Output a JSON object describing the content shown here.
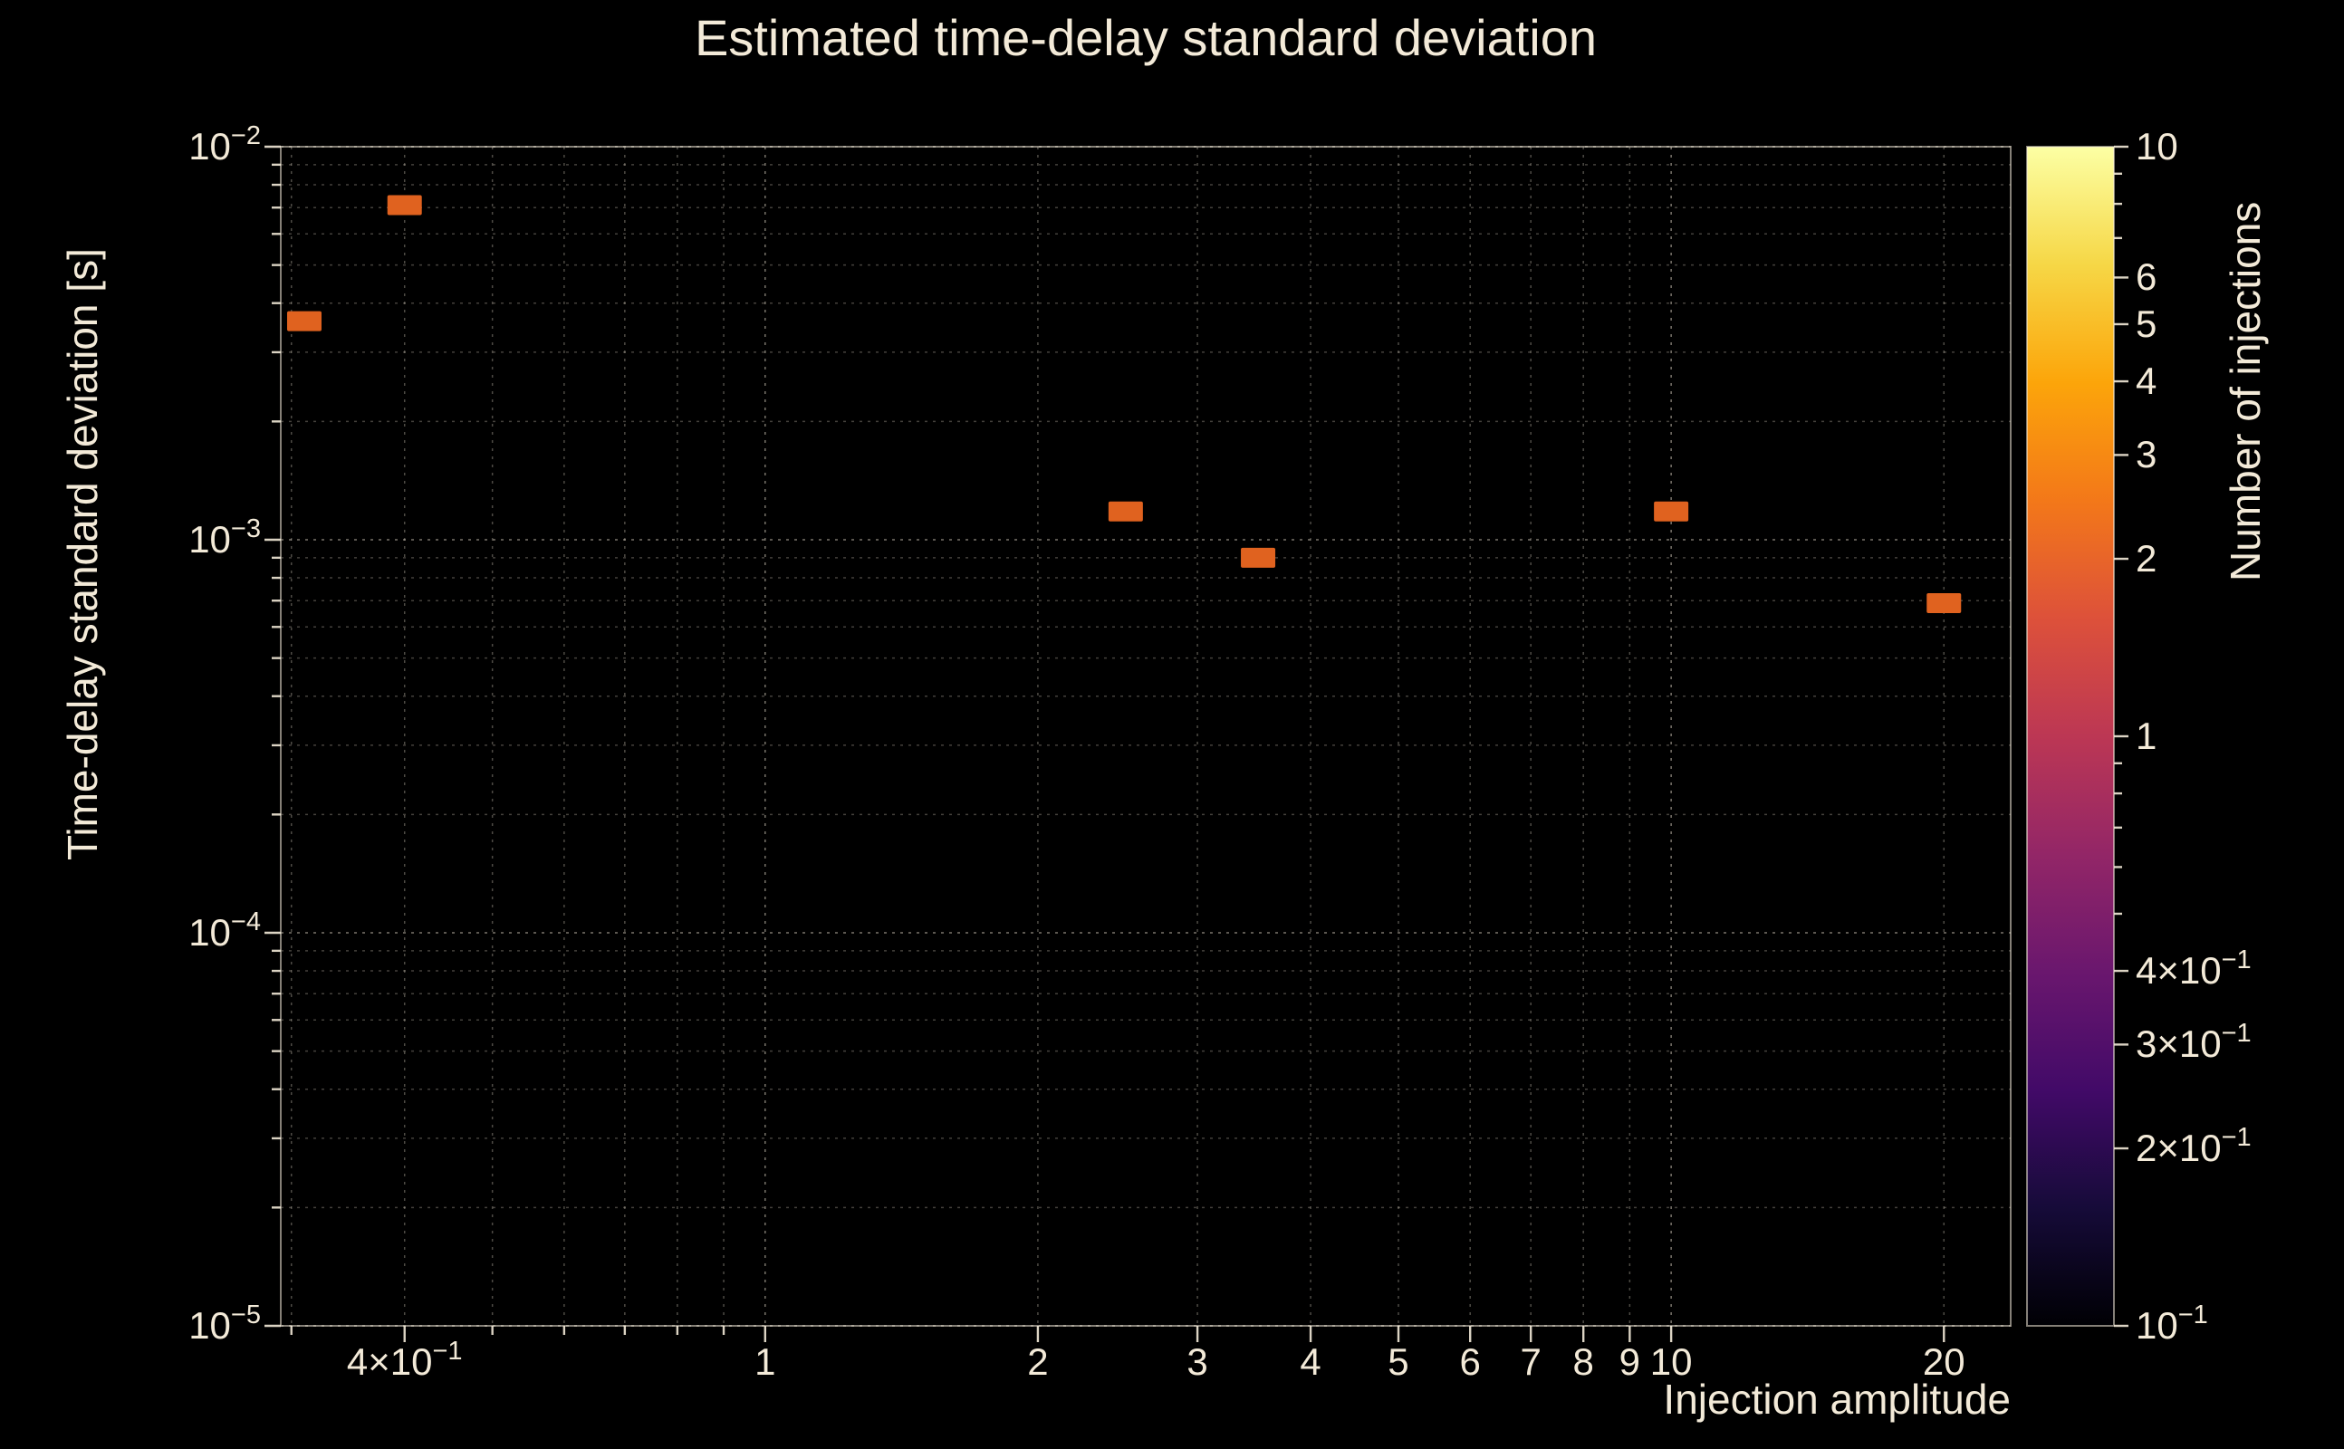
{
  "figure": {
    "background": "#000000",
    "text_color": "#f3ead8",
    "grid_color": "#f3ead8",
    "frame_color": "#f3ead8"
  },
  "chart_data": {
    "type": "scatter",
    "title": "Estimated time-delay standard deviation",
    "xlabel": "Injection amplitude",
    "ylabel": "Time-delay standard deviation [s]",
    "x_scale": "log",
    "y_scale": "log",
    "xlim": [
      0.292,
      23.7
    ],
    "ylim": [
      1e-05,
      0.01
    ],
    "grid": true,
    "marker_color": "#e0621f",
    "points": [
      {
        "x": 0.31,
        "y": 0.0036,
        "injections": 2
      },
      {
        "x": 0.4,
        "y": 0.0071,
        "injections": 2
      },
      {
        "x": 2.5,
        "y": 0.00118,
        "injections": 2
      },
      {
        "x": 3.5,
        "y": 0.0009,
        "injections": 2
      },
      {
        "x": 10,
        "y": 0.00118,
        "injections": 2
      },
      {
        "x": 20,
        "y": 0.00069,
        "injections": 2
      }
    ],
    "x_ticks": [
      {
        "v": 0.4,
        "text": "4×10",
        "sup": "−1"
      },
      {
        "v": 1,
        "text": "1"
      },
      {
        "v": 2,
        "text": "2"
      },
      {
        "v": 3,
        "text": "3"
      },
      {
        "v": 4,
        "text": "4"
      },
      {
        "v": 5,
        "text": "5"
      },
      {
        "v": 6,
        "text": "6"
      },
      {
        "v": 7,
        "text": "7"
      },
      {
        "v": 8,
        "text": "8"
      },
      {
        "v": 9,
        "text": "9"
      },
      {
        "v": 10,
        "text": "10"
      },
      {
        "v": 20,
        "text": "20"
      }
    ],
    "x_minor_ticks": [
      0.3,
      0.5,
      0.6,
      0.7,
      0.8,
      0.9
    ],
    "y_ticks": [
      {
        "v": 0.01,
        "text": "10",
        "sup": "−2"
      },
      {
        "v": 0.001,
        "text": "10",
        "sup": "−3"
      },
      {
        "v": 0.0001,
        "text": "10",
        "sup": "−4"
      },
      {
        "v": 1e-05,
        "text": "10",
        "sup": "−5"
      }
    ],
    "colorbar": {
      "label": "Number of injections",
      "scale": "log",
      "min": 0.1,
      "max": 10,
      "ticks": [
        {
          "v": 10,
          "text": "10"
        },
        {
          "v": 6,
          "text": "6"
        },
        {
          "v": 5,
          "text": "5"
        },
        {
          "v": 4,
          "text": "4"
        },
        {
          "v": 3,
          "text": "3"
        },
        {
          "v": 2,
          "text": "2"
        },
        {
          "v": 1,
          "text": "1"
        },
        {
          "v": 0.4,
          "text": "4×10",
          "sup": "−1"
        },
        {
          "v": 0.3,
          "text": "3×10",
          "sup": "−1"
        },
        {
          "v": 0.2,
          "text": "2×10",
          "sup": "−1"
        },
        {
          "v": 0.1,
          "text": "10",
          "sup": "−1"
        }
      ],
      "minor_ticks": [
        0.5,
        0.6,
        0.7,
        0.8,
        0.9,
        7,
        8,
        9
      ],
      "colormap": "inferno",
      "colormap_stops": [
        [
          0.0,
          "#000004"
        ],
        [
          0.1,
          "#160b39"
        ],
        [
          0.2,
          "#420a68"
        ],
        [
          0.3,
          "#6a176e"
        ],
        [
          0.4,
          "#932667"
        ],
        [
          0.5,
          "#bc3754"
        ],
        [
          0.6,
          "#dd513a"
        ],
        [
          0.7,
          "#f37819"
        ],
        [
          0.8,
          "#fca50a"
        ],
        [
          0.9,
          "#f6d746"
        ],
        [
          1.0,
          "#fcffa4"
        ]
      ]
    }
  }
}
